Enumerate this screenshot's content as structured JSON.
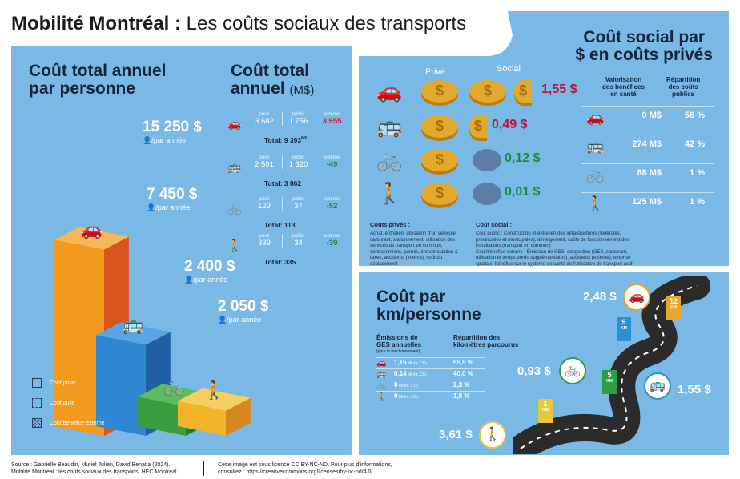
{
  "header": {
    "title_bold": "Mobilité Montréal :",
    "title_rest": " Les coûts sociaux des transports"
  },
  "left_panel": {
    "title": "Coût total annuel\npar personne",
    "per_person_unit": "/par année",
    "legend": [
      "Coût privé",
      "Coût pulic",
      "Coût/bénéfice externe"
    ],
    "modes": [
      {
        "icon": "car-icon",
        "value": "15 250 $"
      },
      {
        "icon": "bus-icon",
        "value": "7 450 $"
      },
      {
        "icon": "bicycle-icon",
        "value": "2 400 $"
      },
      {
        "icon": "pedestrian-icon",
        "value": "2 050 $"
      }
    ]
  },
  "annual_total": {
    "title": "Coût total",
    "title2": "annuel",
    "unit": "(M$)",
    "col_labels": [
      "privé",
      "public",
      "externe"
    ],
    "rows": [
      {
        "icon": "car-icon",
        "prive": "3 682",
        "public": "1 756",
        "externe": "3 955",
        "total": "Total: 9 393",
        "total_sup": "M$"
      },
      {
        "icon": "bus-icon",
        "prive": "2 591",
        "public": "1 320",
        "externe": "-49",
        "total": "Total: 3 862"
      },
      {
        "icon": "bicycle-icon",
        "prive": "129",
        "public": "37",
        "externe": "-52",
        "total": "Total: 113"
      },
      {
        "icon": "pedestrian-icon",
        "prive": "339",
        "public": "34",
        "externe": "-39",
        "total": "Total: 335"
      }
    ]
  },
  "social_cost": {
    "title": "Coût social par\n$ en coûts privés",
    "col_prive": "Privé",
    "col_social": "Social",
    "values": [
      "1,55 $",
      "0,49 $",
      "0,12 $",
      "0,01 $"
    ],
    "colors": {
      "red": "#c8102e",
      "green": "#1f8a3b",
      "coin": "#e3a92c"
    },
    "header_valorisation": "Valorisation\ndes bénéfices\nen santé",
    "header_repartition": "Répartition\ndes coûts\npublics",
    "table": [
      {
        "icon": "car-icon",
        "valorisation": "0 M$",
        "repartition": "56 %"
      },
      {
        "icon": "bus-icon",
        "valorisation": "274 M$",
        "repartition": "42 %"
      },
      {
        "icon": "bicycle-icon",
        "valorisation": "88 M$",
        "repartition": "1 %"
      },
      {
        "icon": "pedestrian-icon",
        "valorisation": "125 M$",
        "repartition": "1 %"
      }
    ],
    "def_prive_title": "Coûts privés :",
    "def_prive_text": "Achat, entretien, utilisation d'un véhicule, carburant, stationnement, utilisation des services de transport en commun, contraventions, permis, immatriculation & taxes, accidents (interne), coût du déplacement",
    "def_social_title": "Coût social :",
    "def_social_text_1": "Coût public : Construction et entretien des infrastructures (fédérales, provinciales et municipales), déneigement, coûts de fonctionnement des installations (transport en commun)",
    "def_social_text_2": "Coût/bénéfice externe : Émission de GES, congestion (GES, carburant, utilisation et temps perdu supplémentaires), accidents (externe), emprise spatiale, bénéfice sur le système de santé de l'utilisation de transport actif"
  },
  "km_panel": {
    "title": "Coût par\nkm/personne",
    "ges_header": "Émissions de\nGES annuelles",
    "ges_subheader": "(pour le fonctionnement)",
    "rep_header": "Répartition des\nkilomètres parcourus",
    "rows": [
      {
        "icon": "car-icon",
        "ges_value": "1,15",
        "ges_unit": "Mt éq. CO₂",
        "repartition": "55,9 %"
      },
      {
        "icon": "bus-icon",
        "ges_value": "0,14",
        "ges_unit": "Mt éq. CO₂",
        "repartition": "40,0 %"
      },
      {
        "icon": "bicycle-icon",
        "ges_value": "0",
        "ges_unit": "Mt éq. CO₂",
        "repartition": "2,3 %"
      },
      {
        "icon": "pedestrian-icon",
        "ges_value": "0",
        "ges_unit": "Mt éq. CO₂",
        "repartition": "1,8 %"
      }
    ],
    "road_costs": [
      {
        "mode": "car-icon",
        "value": "2,48 $",
        "km": "12",
        "km_unit": "KM"
      },
      {
        "mode": "bus-icon",
        "value": "1,55 $",
        "km": "9",
        "km_unit": "KM"
      },
      {
        "mode": "bicycle-icon",
        "value": "0,93 $",
        "km": "5",
        "km_unit": "KM"
      },
      {
        "mode": "pedestrian-icon",
        "value": "3,61 $",
        "km": "1",
        "km_unit": "KM"
      }
    ]
  },
  "chart_data": {
    "type": "bar",
    "categories": [
      "Automobile",
      "Transport en commun",
      "Vélo",
      "Marche"
    ],
    "values": [
      15250,
      7450,
      2400,
      2050
    ],
    "title": "Coût total annuel par personne",
    "xlabel": "",
    "ylabel": "",
    "ylim": [
      0,
      16000
    ]
  },
  "footer": {
    "source_1": "Source : Gabrielle Beaudin, Muriel Julien, David Benatia (2024).",
    "source_2": "Mobilité Montréal : les coûts sociaux des transports. HEC Montréal",
    "license_1": "Cette image est sous licence CC BY-NC-ND. Pour plus d'informations,",
    "license_2": "consultez : https://creativecommons.org/licenses/by-nc-nd/4.0/"
  }
}
